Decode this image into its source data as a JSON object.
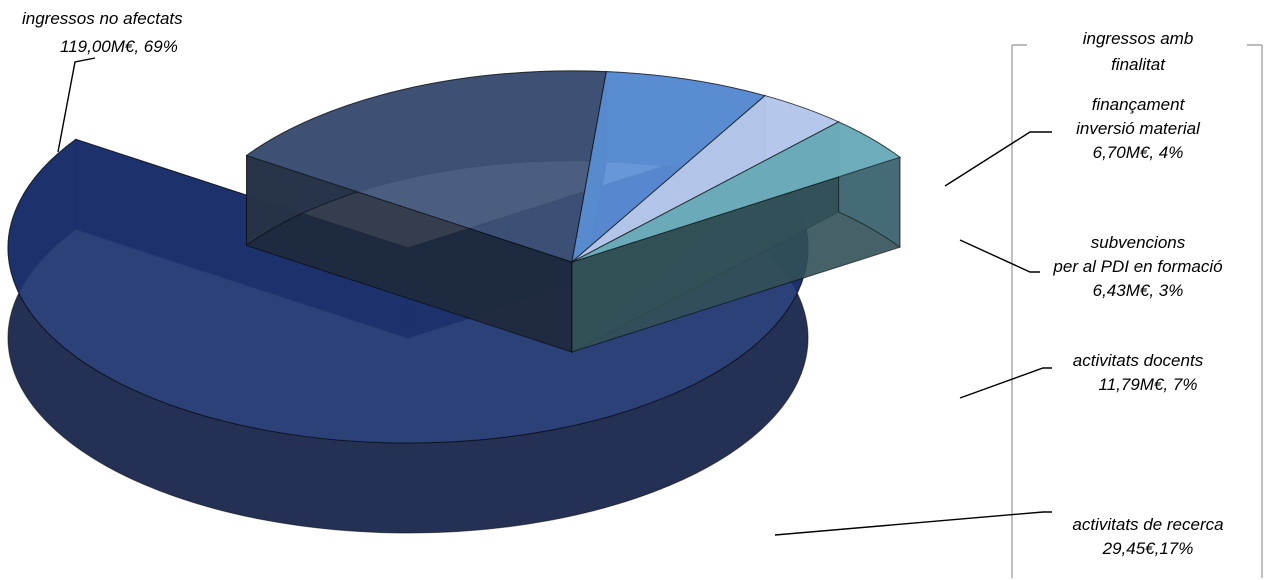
{
  "chart_data": {
    "type": "pie",
    "style": "3d-exploded",
    "group_title": "ingressos amb finalitat",
    "slices": [
      {
        "label": "ingressos no afectats",
        "value_text": "119,00M€, 69%",
        "value": 119.0,
        "percent": 69,
        "color": "#1d336f",
        "group": "main"
      },
      {
        "label": "finançament inversió material",
        "value_text": "6,70M€, 4%",
        "value": 6.7,
        "percent": 4,
        "color": "#6fb2c0",
        "group": "finalitat"
      },
      {
        "label": "subvencions per al PDI en formació",
        "value_text": "6,43M€, 3%",
        "value": 6.43,
        "percent": 3,
        "color": "#b9cbf0",
        "group": "finalitat"
      },
      {
        "label": "activitats docents",
        "value_text": "11,79M€, 7%",
        "value": 11.79,
        "percent": 7,
        "color": "#5b8fd6",
        "group": "finalitat"
      },
      {
        "label": "activitats de recerca",
        "value_text": "29,45€,17%",
        "value": 29.45,
        "percent": 17,
        "color": "#3e5275",
        "group": "finalitat"
      }
    ]
  },
  "labels": {
    "main_name": "ingressos no afectats",
    "main_value": "119,00M€, 69%",
    "group_title_1": "ingressos amb",
    "group_title_2": "finalitat",
    "s1_line1": "finançament",
    "s1_line2": "inversió material",
    "s1_value": "6,70M€, 4%",
    "s2_line1": "subvencions",
    "s2_line2": "per al PDI en formació",
    "s2_value": "6,43M€, 3%",
    "s3_line1": "activitats docents",
    "s3_value": "11,79M€, 7%",
    "s4_line1": "activitats de recerca",
    "s4_value": "29,45€,17%"
  }
}
